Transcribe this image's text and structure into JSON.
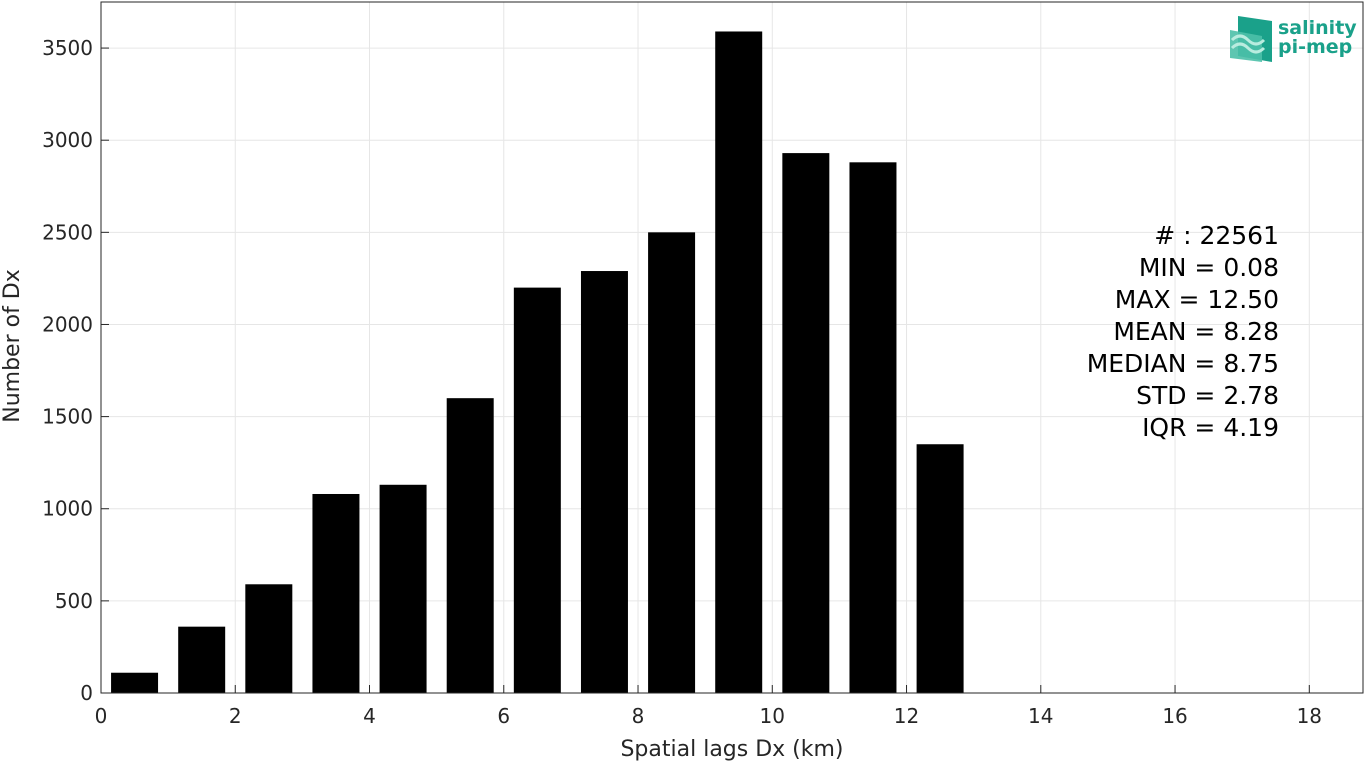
{
  "colors": {
    "bar": "#000000",
    "grid": "#e6e6e6",
    "axis": "#262626",
    "logo_primary": "#1aa18a",
    "logo_secondary": "#7fd6c2"
  },
  "logo": {
    "line1": "salinity",
    "line2": "pi-mep",
    "icon": "waves-icon"
  },
  "stats": {
    "lines": [
      "# : 22561",
      "MIN = 0.08",
      "MAX =  12.50",
      "MEAN = 8.28",
      "MEDIAN = 8.75",
      "STD = 2.78",
      "IQR = 4.19"
    ]
  },
  "chart_data": {
    "type": "bar",
    "xlabel": "Spatial lags Dx (km)",
    "ylabel": "Number of Dx",
    "xlim": [
      0,
      18.8
    ],
    "ylim": [
      0,
      3750
    ],
    "grid": true,
    "x_ticks": [
      0,
      2,
      4,
      6,
      8,
      10,
      12,
      14,
      16,
      18
    ],
    "y_ticks": [
      0,
      500,
      1000,
      1500,
      2000,
      2500,
      3000,
      3500
    ],
    "bin_width": 1,
    "bar_width": 0.7,
    "bin_centers": [
      0.5,
      1.5,
      2.5,
      3.5,
      4.5,
      5.5,
      6.5,
      7.5,
      8.5,
      9.5,
      10.5,
      11.5,
      12.5
    ],
    "values": [
      110,
      360,
      590,
      1080,
      1130,
      1600,
      2200,
      2290,
      2500,
      3590,
      2930,
      2880,
      1350
    ]
  }
}
